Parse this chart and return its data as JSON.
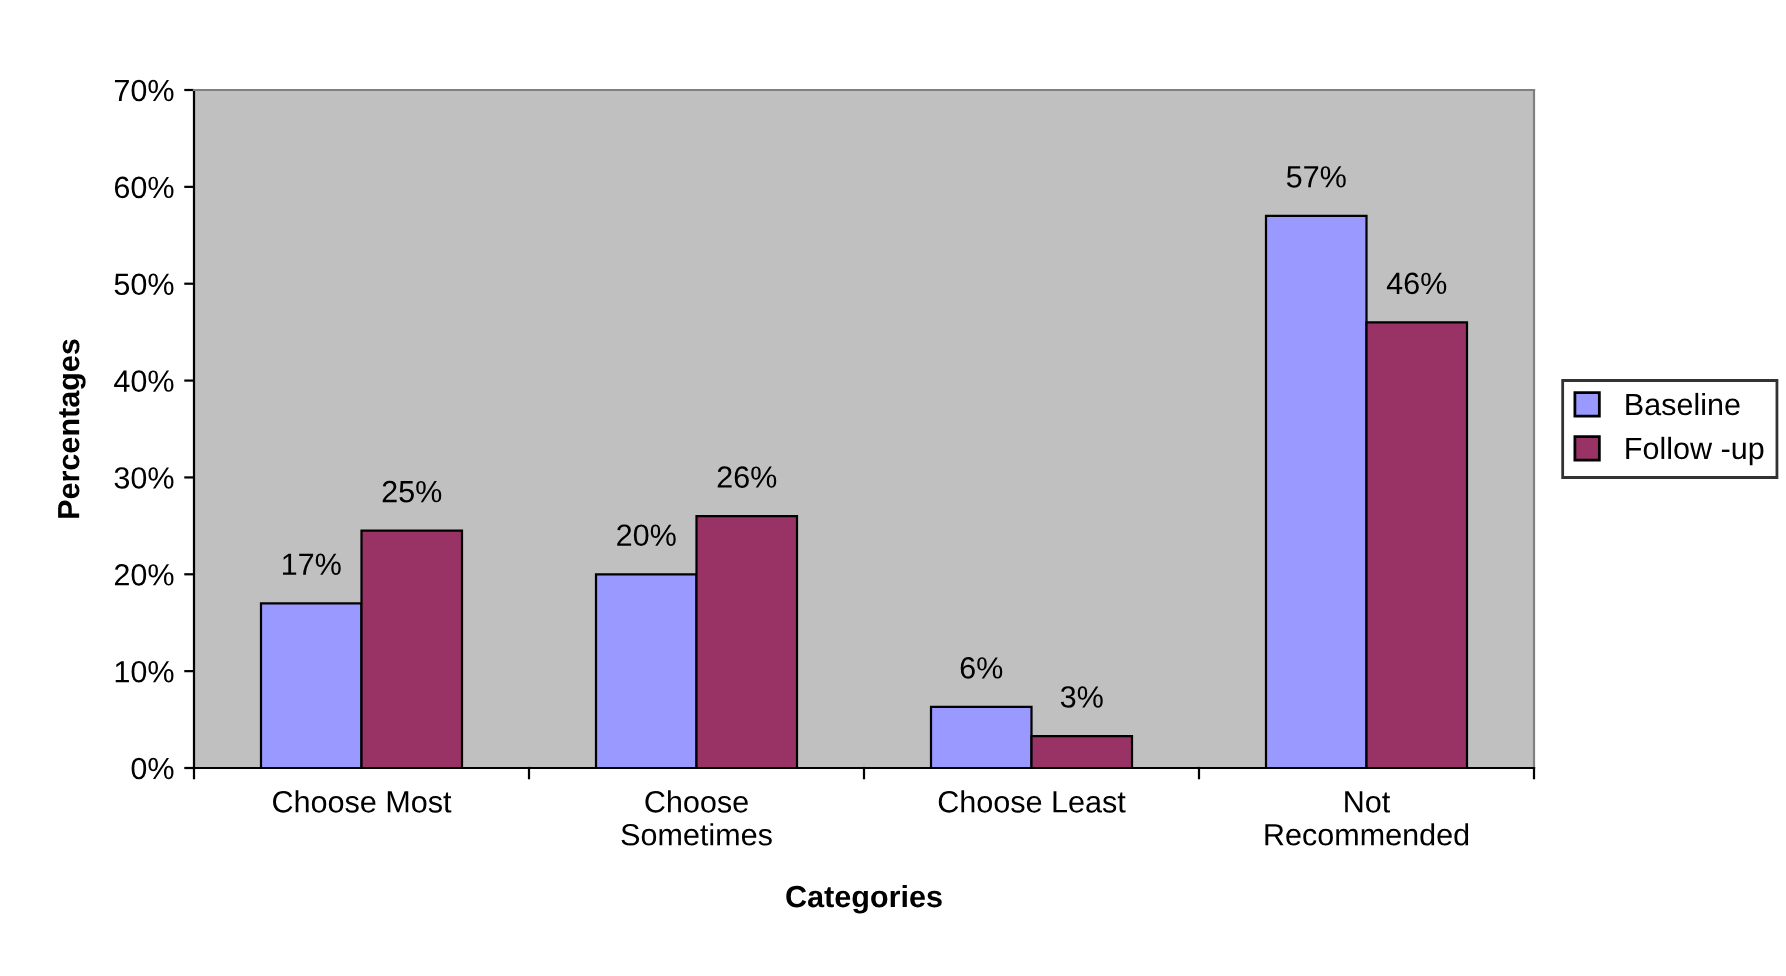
{
  "chart_data": {
    "type": "bar",
    "xlabel": "Categories",
    "ylabel": "Percentages",
    "categories": [
      "Choose Most",
      "Choose\nSometimes",
      "Choose Least",
      "Not\nRecommended"
    ],
    "series": [
      {
        "name": "Baseline",
        "color": "#9999ff",
        "values": [
          17,
          20,
          6.3,
          57
        ],
        "value_labels": [
          "17%",
          "20%",
          "6%",
          "57%"
        ]
      },
      {
        "name": "Follow -up",
        "color": "#993366",
        "values": [
          24.5,
          26,
          3.3,
          46
        ],
        "value_labels": [
          "25%",
          "26%",
          "3%",
          "46%"
        ]
      }
    ],
    "ylim": [
      0,
      70
    ],
    "yticks": [
      {
        "value": 0,
        "label": "0%"
      },
      {
        "value": 10,
        "label": "10%"
      },
      {
        "value": 20,
        "label": "20%"
      },
      {
        "value": 30,
        "label": "30%"
      },
      {
        "value": 40,
        "label": "40%"
      },
      {
        "value": 50,
        "label": "50%"
      },
      {
        "value": 60,
        "label": "60%"
      },
      {
        "value": 70,
        "label": "70%"
      }
    ],
    "grid": false,
    "legend": "right"
  }
}
